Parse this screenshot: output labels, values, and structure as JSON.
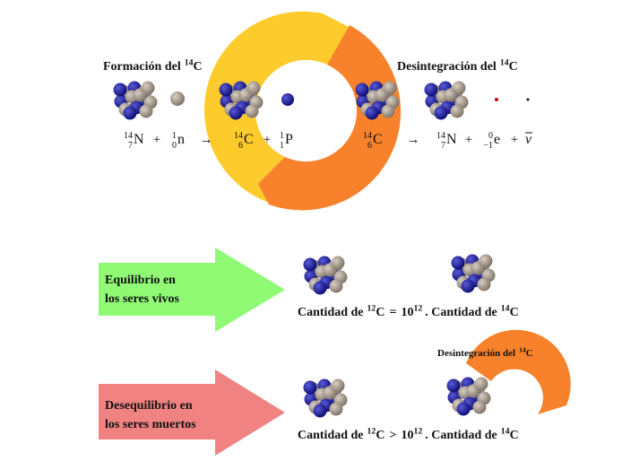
{
  "top": {
    "formation_title": {
      "text": "Formación del",
      "mass": "14",
      "symbol": "C"
    },
    "decay_title": {
      "text": "Desintegración del",
      "mass": "14",
      "symbol": "C"
    },
    "formation_equation": [
      {
        "mass": "14",
        "atomic": "7",
        "symbol": "N"
      },
      "+",
      {
        "mass": "1",
        "atomic": "0",
        "symbol": "n"
      },
      "→",
      {
        "mass": "14",
        "atomic": "6",
        "symbol": "C"
      },
      "+",
      {
        "mass": "1",
        "atomic": "1",
        "symbol": "P"
      }
    ],
    "decay_equation": [
      {
        "mass": "14",
        "atomic": "6",
        "symbol": "C"
      },
      "→",
      {
        "mass": "14",
        "atomic": "7",
        "symbol": "N"
      },
      "+",
      {
        "mass": "0",
        "atomic": "−1",
        "symbol": "e"
      },
      "+",
      {
        "symbol": "ν"
      }
    ]
  },
  "living": {
    "label": [
      "Equilibrio en",
      "los seres vivos"
    ],
    "amount": {
      "left": "Cantidad de",
      "left_mass": "12",
      "left_symbol": "C",
      "relation": "=",
      "base": "10",
      "exponent": "12",
      "right": ". Cantidad de",
      "right_mass": "14",
      "right_symbol": "C"
    }
  },
  "dead": {
    "label": [
      "Desequilibrio en",
      "los seres muertos"
    ],
    "amount": {
      "left": "Cantidad de",
      "left_mass": "12",
      "left_symbol": "C",
      "relation": ">",
      "base": "10",
      "exponent": "12",
      "right": ". Cantidad de",
      "right_mass": "14",
      "right_symbol": "C"
    },
    "decay_label": {
      "text": "Desintegración del",
      "mass": "14",
      "symbol": "C"
    }
  }
}
